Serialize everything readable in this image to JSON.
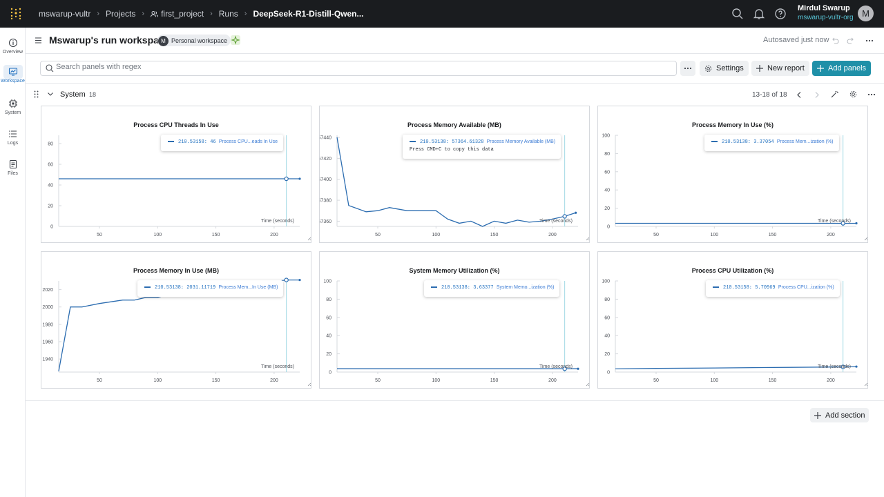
{
  "topbar": {
    "breadcrumbs": [
      "mswarup-vultr",
      "Projects",
      "first_project",
      "Runs",
      "DeepSeek-R1-Distill-Qwen..."
    ],
    "user_name": "Mirdul Swarup",
    "user_org": "mswarup-vultr-org",
    "avatar_letter": "M"
  },
  "leftnav": [
    {
      "label": "Overview",
      "icon": "info-icon"
    },
    {
      "label": "Workspace",
      "icon": "workspace-icon",
      "active": true
    },
    {
      "label": "System",
      "icon": "chip-icon"
    },
    {
      "label": "Logs",
      "icon": "list-icon"
    },
    {
      "label": "Files",
      "icon": "file-icon"
    }
  ],
  "header": {
    "title": "Mswarup's run workspace",
    "workspace_badge_letter": "M",
    "workspace_badge": "Personal workspace",
    "autosave": "Autosaved just now"
  },
  "toolbar": {
    "search_placeholder": "Search panels with regex",
    "settings_label": "Settings",
    "new_report_label": "New report",
    "add_panels_label": "Add panels"
  },
  "section": {
    "title": "System",
    "count": "18",
    "pager": "13-18 of 18",
    "add_section_label": "Add section"
  },
  "colors": {
    "accent": "#1f90a8",
    "line": "#2b6cb0",
    "topbar": "#1a1c1f"
  },
  "panels": [
    {
      "title": "Process CPU Threads In Use",
      "xlabel": "Time (seconds)",
      "tooltip_x": "210.53158:",
      "tooltip_value": "46",
      "tooltip_name": "Process CPU...eads In Use",
      "tooltip_extra": ""
    },
    {
      "title": "Process Memory Available (MB)",
      "xlabel": "Time (seconds)",
      "tooltip_x": "210.53138:",
      "tooltip_value": "57364.61328",
      "tooltip_name": "Process Memory Available (MB)",
      "tooltip_extra": "Press CMD+C to copy this data"
    },
    {
      "title": "Process Memory In Use (%)",
      "xlabel": "Time (seconds)",
      "tooltip_x": "210.53138:",
      "tooltip_value": "3.37054",
      "tooltip_name": "Process Mem...ization (%)",
      "tooltip_extra": ""
    },
    {
      "title": "Process Memory In Use (MB)",
      "xlabel": "Time (seconds)",
      "tooltip_x": "210.53138:",
      "tooltip_value": "2031.11719",
      "tooltip_name": "Process Mem...In Use (MB)",
      "tooltip_extra": ""
    },
    {
      "title": "System Memory Utilization (%)",
      "xlabel": "Time (seconds)",
      "tooltip_x": "210.53138:",
      "tooltip_value": "3.63377",
      "tooltip_name": "System Memo...ization (%)",
      "tooltip_extra": ""
    },
    {
      "title": "Process CPU Utilization (%)",
      "xlabel": "Time (seconds)",
      "tooltip_x": "210.53158:",
      "tooltip_value": "5.70969",
      "tooltip_name": "Process CPU...ization (%)",
      "tooltip_extra": ""
    }
  ],
  "chart_data": [
    {
      "type": "line",
      "title": "Process CPU Threads In Use",
      "xlabel": "Time (seconds)",
      "xticks": [
        50,
        100,
        150,
        200
      ],
      "yticks": [
        0,
        20,
        40,
        60,
        80
      ],
      "xlim": [
        15,
        222
      ],
      "ylim": [
        0,
        88
      ],
      "x": [
        15,
        50,
        100,
        150,
        200,
        210.53,
        222
      ],
      "y": [
        46,
        46,
        46,
        46,
        46,
        46,
        46
      ],
      "cursor_x": 210.53
    },
    {
      "type": "line",
      "title": "Process Memory Available (MB)",
      "xlabel": "Time (seconds)",
      "xticks": [
        50,
        100,
        150,
        200
      ],
      "yticks": [
        57360,
        57380,
        57400,
        57420,
        57440
      ],
      "xlim": [
        15,
        222
      ],
      "ylim": [
        57355,
        57442
      ],
      "x": [
        15,
        25,
        40,
        50,
        60,
        75,
        90,
        100,
        110,
        120,
        130,
        140,
        150,
        160,
        170,
        180,
        190,
        200,
        210.53,
        220
      ],
      "y": [
        57440,
        57375,
        57369,
        57370,
        57373,
        57370,
        57370,
        57370,
        57362,
        57358,
        57360,
        57355,
        57360,
        57358,
        57361,
        57359,
        57360,
        57362,
        57364.6,
        57368
      ],
      "cursor_x": 210.53
    },
    {
      "type": "line",
      "title": "Process Memory In Use (%)",
      "xlabel": "Time (seconds)",
      "xticks": [
        50,
        100,
        150,
        200
      ],
      "yticks": [
        0,
        20,
        40,
        60,
        80,
        100
      ],
      "xlim": [
        15,
        222
      ],
      "ylim": [
        0,
        100
      ],
      "x": [
        15,
        50,
        100,
        150,
        200,
        210.53,
        222
      ],
      "y": [
        3.4,
        3.4,
        3.4,
        3.4,
        3.4,
        3.37,
        3.4
      ],
      "cursor_x": 210.53
    },
    {
      "type": "line",
      "title": "Process Memory In Use (MB)",
      "xlabel": "Time (seconds)",
      "xticks": [
        50,
        100,
        150,
        200
      ],
      "yticks": [
        1940,
        1960,
        1980,
        2000,
        2020
      ],
      "xlim": [
        15,
        222
      ],
      "ylim": [
        1925,
        2030
      ],
      "x": [
        15,
        25,
        35,
        50,
        70,
        80,
        90,
        100,
        110,
        210.53,
        222
      ],
      "y": [
        1926,
        2000,
        2000,
        2004,
        2008,
        2008,
        2011,
        2011,
        2015,
        2031.1,
        2031.1
      ],
      "cursor_x": 210.53
    },
    {
      "type": "line",
      "title": "System Memory Utilization (%)",
      "xlabel": "Time (seconds)",
      "xticks": [
        50,
        100,
        150,
        200
      ],
      "yticks": [
        0,
        20,
        40,
        60,
        80,
        100
      ],
      "xlim": [
        15,
        222
      ],
      "ylim": [
        0,
        100
      ],
      "x": [
        15,
        50,
        100,
        150,
        200,
        210.53,
        222
      ],
      "y": [
        3.6,
        3.6,
        3.6,
        3.6,
        3.6,
        3.63,
        3.6
      ],
      "cursor_x": 210.53
    },
    {
      "type": "line",
      "title": "Process CPU Utilization (%)",
      "xlabel": "Time (seconds)",
      "xticks": [
        50,
        100,
        150,
        200
      ],
      "yticks": [
        0,
        20,
        40,
        60,
        80,
        100
      ],
      "xlim": [
        15,
        222
      ],
      "ylim": [
        0,
        100
      ],
      "x": [
        15,
        50,
        100,
        150,
        200,
        210.53,
        222
      ],
      "y": [
        3.5,
        4,
        4.5,
        5,
        5.5,
        5.71,
        6
      ],
      "cursor_x": 210.53
    }
  ]
}
